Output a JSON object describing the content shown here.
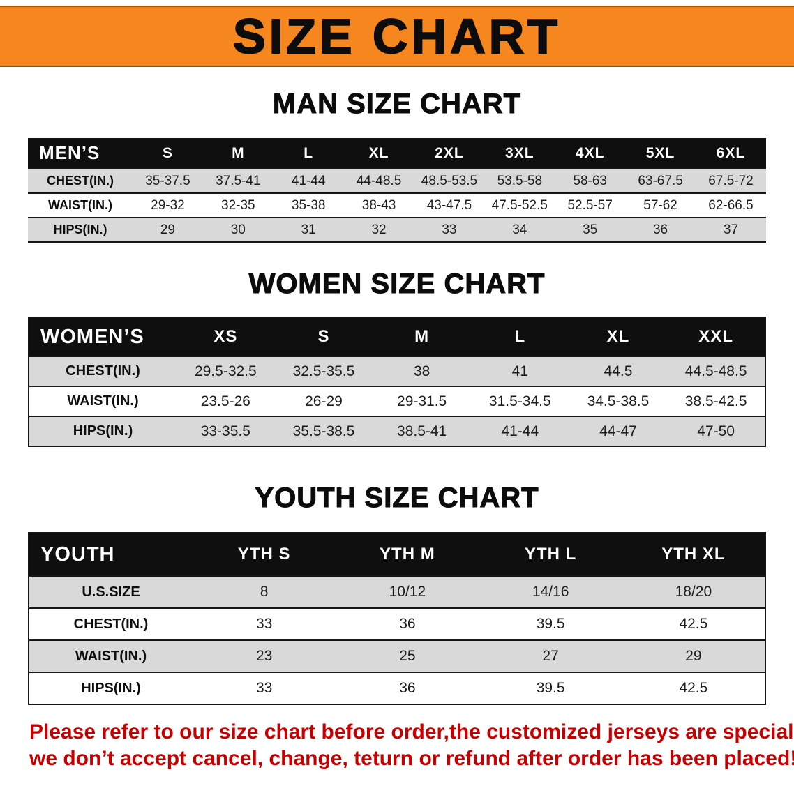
{
  "banner": {
    "title": "SIZE CHART"
  },
  "sections": [
    {
      "heading": "MAN SIZE CHART",
      "table": {
        "name": "mens",
        "header": [
          "MEN’S",
          "S",
          "M",
          "L",
          "XL",
          "2XL",
          "3XL",
          "4XL",
          "5XL",
          "6XL"
        ],
        "rows": [
          [
            "CHEST(IN.)",
            "35-37.5",
            "37.5-41",
            "41-44",
            "44-48.5",
            "48.5-53.5",
            "53.5-58",
            "58-63",
            "63-67.5",
            "67.5-72"
          ],
          [
            "WAIST(IN.)",
            "29-32",
            "32-35",
            "35-38",
            "38-43",
            "43-47.5",
            "47.5-52.5",
            "52.5-57",
            "57-62",
            "62-66.5"
          ],
          [
            "HIPS(IN.)",
            "29",
            "30",
            "31",
            "32",
            "33",
            "34",
            "35",
            "36",
            "37"
          ]
        ]
      }
    },
    {
      "heading": "WOMEN SIZE CHART",
      "table": {
        "name": "womens",
        "header": [
          "WOMEN’S",
          "XS",
          "S",
          "M",
          "L",
          "XL",
          "XXL"
        ],
        "rows": [
          [
            "CHEST(IN.)",
            "29.5-32.5",
            "32.5-35.5",
            "38",
            "41",
            "44.5",
            "44.5-48.5"
          ],
          [
            "WAIST(IN.)",
            "23.5-26",
            "26-29",
            "29-31.5",
            "31.5-34.5",
            "34.5-38.5",
            "38.5-42.5"
          ],
          [
            "HIPS(IN.)",
            "33-35.5",
            "35.5-38.5",
            "38.5-41",
            "41-44",
            "44-47",
            "47-50"
          ]
        ]
      }
    },
    {
      "heading": "YOUTH SIZE CHART",
      "table": {
        "name": "youth",
        "header": [
          "YOUTH",
          "YTH S",
          "YTH M",
          "YTH L",
          "YTH XL"
        ],
        "rows": [
          [
            "U.S.SIZE",
            "8",
            "10/12",
            "14/16",
            "18/20"
          ],
          [
            "CHEST(IN.)",
            "33",
            "36",
            "39.5",
            "42.5"
          ],
          [
            "WAIST(IN.)",
            "23",
            "25",
            "27",
            "29"
          ],
          [
            "HIPS(IN.)",
            "33",
            "36",
            "39.5",
            "42.5"
          ]
        ]
      }
    }
  ],
  "footer": {
    "line1": "Please refer to our size chart before order,the customized jerseys are special products,",
    "line2": "we don’t accept cancel, change, teturn or refund after order has been placed!"
  },
  "colors": {
    "banner_orange": "#f6871f",
    "table_header_black": "#0f0f0f",
    "row_alt_gray": "#d9d9d9",
    "footer_red": "#c40000"
  }
}
